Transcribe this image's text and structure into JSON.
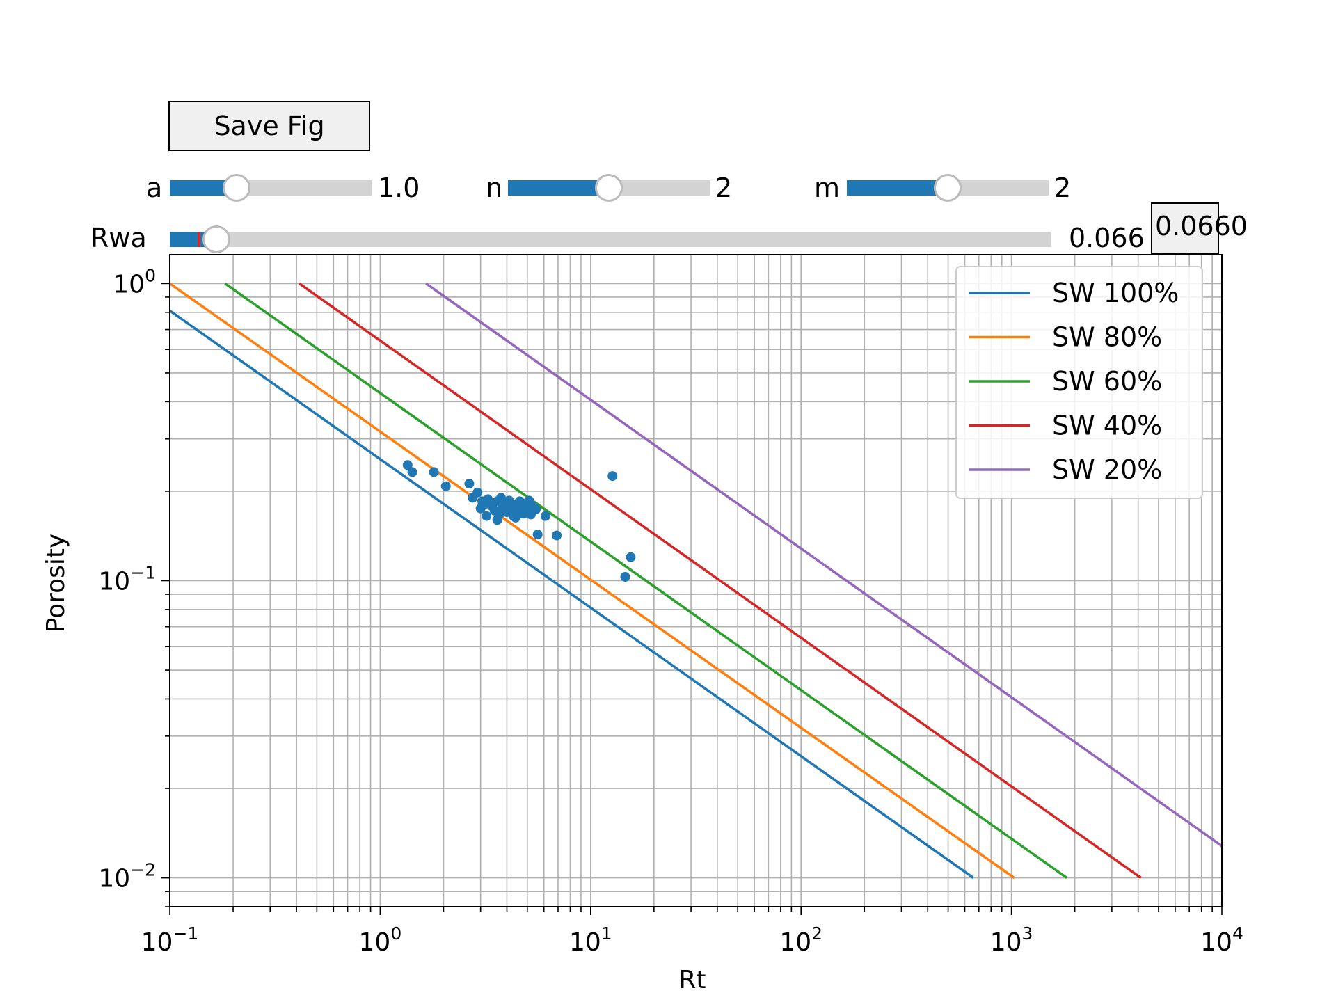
{
  "widgets": {
    "save_button_label": "Save Fig",
    "sliders": [
      {
        "label": "a",
        "value_text": "1.0",
        "fraction": 0.33
      },
      {
        "label": "n",
        "value_text": "2",
        "fraction": 0.5
      },
      {
        "label": "m",
        "value_text": "2",
        "fraction": 0.5
      },
      {
        "label": "Rwa",
        "value_text": "0.066",
        "fraction": 0.053,
        "marker_fraction": 0.033
      }
    ],
    "textbox_value": "0.0660"
  },
  "colors": {
    "slider_fill": "#1f77b4",
    "slider_track": "#d3d3d3",
    "marker": "#d62728",
    "grid": "#b0b0b0"
  },
  "chart_data": {
    "type": "scatter",
    "xlabel": "Rt",
    "ylabel": "Porosity",
    "xscale": "log",
    "yscale": "log",
    "xlim": [
      0.1,
      10000
    ],
    "ylim": [
      0.008,
      1.25
    ],
    "x_ticks": [
      {
        "value": 0.1,
        "base": "10",
        "exp": "−1"
      },
      {
        "value": 1,
        "base": "10",
        "exp": "0"
      },
      {
        "value": 10,
        "base": "10",
        "exp": "1"
      },
      {
        "value": 100,
        "base": "10",
        "exp": "2"
      },
      {
        "value": 1000,
        "base": "10",
        "exp": "3"
      },
      {
        "value": 10000,
        "base": "10",
        "exp": "4"
      }
    ],
    "y_ticks": [
      {
        "value": 0.01,
        "base": "10",
        "exp": "−2"
      },
      {
        "value": 0.1,
        "base": "10",
        "exp": "−1"
      },
      {
        "value": 1,
        "base": "10",
        "exp": "0"
      }
    ],
    "grid": "major and minor",
    "legend_position": "top-right",
    "series": [
      {
        "name": "SW 100%",
        "type": "line",
        "color": "#1f77b4",
        "x": [
          0.1,
          660
        ],
        "y": [
          0.81,
          0.01
        ]
      },
      {
        "name": "SW 80%",
        "type": "line",
        "color": "#ff7f0e",
        "x": [
          0.1,
          1031
        ],
        "y": [
          1.0,
          0.01
        ]
      },
      {
        "name": "SW 60%",
        "type": "line",
        "color": "#2ca02c",
        "x": [
          0.183,
          1833
        ],
        "y": [
          1.0,
          0.01
        ]
      },
      {
        "name": "SW 40%",
        "type": "line",
        "color": "#d62728",
        "x": [
          0.4125,
          4125
        ],
        "y": [
          1.0,
          0.01
        ]
      },
      {
        "name": "SW 20%",
        "type": "line",
        "color": "#9467bd",
        "x": [
          1.65,
          10000
        ],
        "y": [
          1.0,
          0.0128
        ]
      },
      {
        "name": "",
        "type": "scatter",
        "color": "#1f77b4",
        "x": [
          1.35,
          1.42,
          1.8,
          2.05,
          2.65,
          2.75,
          2.9,
          3.0,
          3.05,
          3.1,
          3.2,
          3.25,
          3.4,
          3.5,
          3.6,
          3.7,
          3.75,
          3.8,
          3.9,
          4.0,
          4.1,
          4.2,
          4.3,
          4.4,
          4.5,
          4.6,
          4.7,
          4.8,
          4.9,
          5.0,
          5.1,
          5.2,
          5.3,
          5.5,
          3.6,
          4.0,
          4.4,
          4.8,
          5.2,
          6.1,
          5.6,
          6.9,
          12.7,
          15.5,
          14.6
        ],
        "y": [
          0.245,
          0.232,
          0.232,
          0.208,
          0.212,
          0.19,
          0.198,
          0.175,
          0.185,
          0.18,
          0.165,
          0.188,
          0.178,
          0.172,
          0.185,
          0.168,
          0.19,
          0.177,
          0.183,
          0.172,
          0.186,
          0.175,
          0.165,
          0.18,
          0.17,
          0.185,
          0.176,
          0.168,
          0.182,
          0.172,
          0.186,
          0.168,
          0.178,
          0.174,
          0.16,
          0.17,
          0.163,
          0.175,
          0.167,
          0.165,
          0.143,
          0.142,
          0.225,
          0.12,
          0.103
        ]
      }
    ]
  }
}
